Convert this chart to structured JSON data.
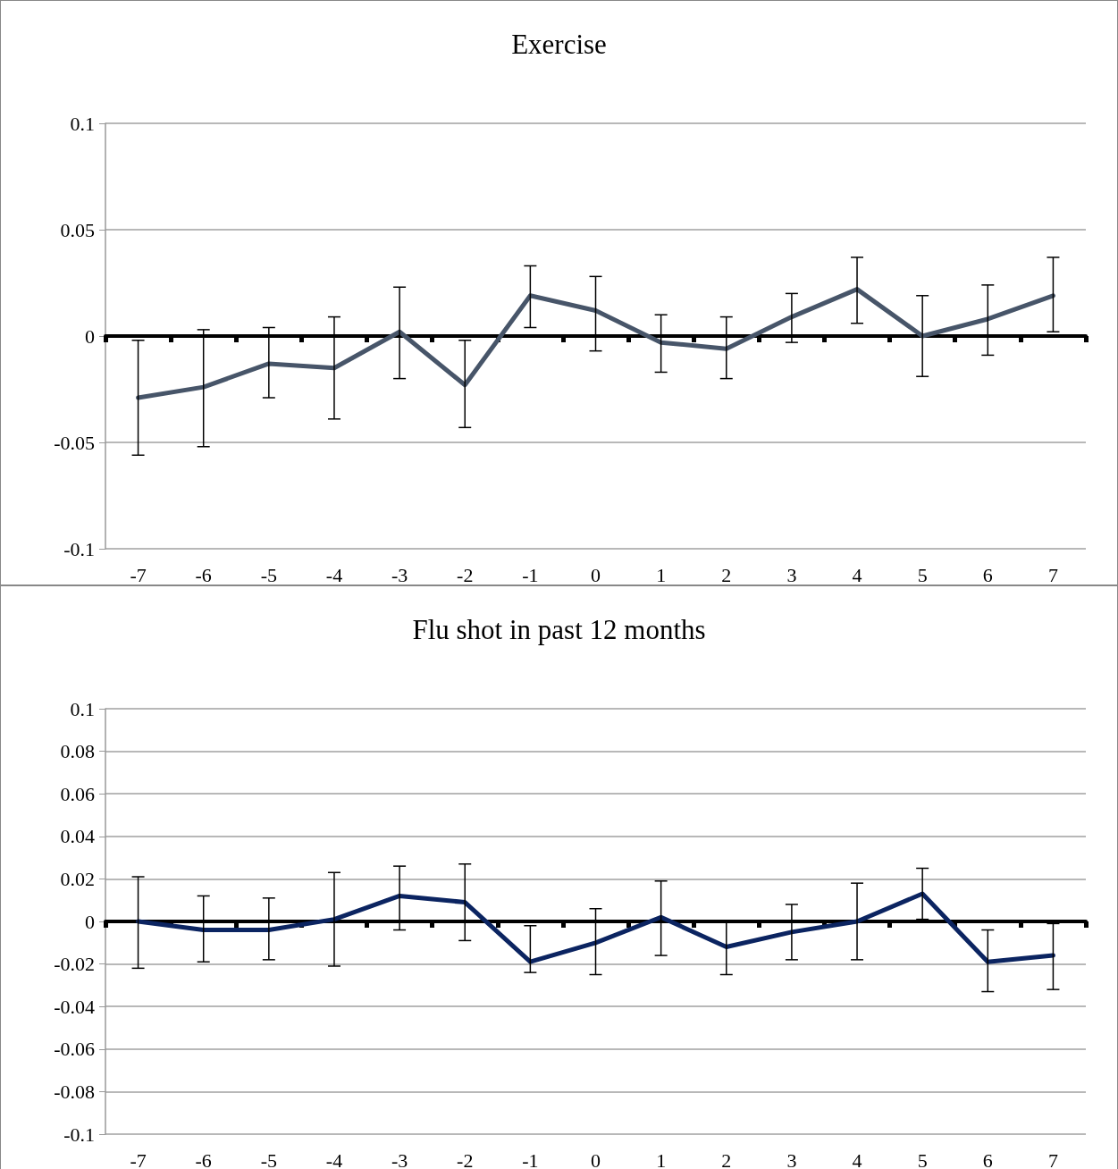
{
  "chart_data": [
    {
      "type": "line",
      "title": "Exercise",
      "categories": [
        "-7",
        "-6",
        "-5",
        "-4",
        "-3",
        "-2",
        "-1",
        "0",
        "1",
        "2",
        "3",
        "4",
        "5",
        "6",
        "7"
      ],
      "series": [
        {
          "color": "#475569",
          "values": [
            -0.029,
            -0.024,
            -0.013,
            -0.015,
            0.002,
            -0.023,
            0.019,
            0.012,
            -0.003,
            -0.006,
            0.009,
            0.022,
            0.0,
            0.008,
            0.019
          ],
          "errors": [
            [
              -0.056,
              -0.002
            ],
            [
              -0.052,
              0.003
            ],
            [
              -0.029,
              0.004
            ],
            [
              -0.039,
              0.009
            ],
            [
              -0.02,
              0.023
            ],
            [
              -0.043,
              -0.002
            ],
            [
              0.004,
              0.033
            ],
            [
              -0.007,
              0.028
            ],
            [
              -0.017,
              0.01
            ],
            [
              -0.02,
              0.009
            ],
            [
              -0.003,
              0.02
            ],
            [
              0.006,
              0.037
            ],
            [
              -0.019,
              0.019
            ],
            [
              -0.009,
              0.024
            ],
            [
              0.002,
              0.037
            ]
          ]
        }
      ],
      "ylim": [
        -0.1,
        0.1
      ],
      "yticks": [
        -0.1,
        -0.05,
        0,
        0.05,
        0.1
      ],
      "grid": "y"
    },
    {
      "type": "line",
      "title": "Flu shot in past 12 months",
      "categories": [
        "-7",
        "-6",
        "-5",
        "-4",
        "-3",
        "-2",
        "-1",
        "0",
        "1",
        "2",
        "3",
        "4",
        "5",
        "6",
        "7"
      ],
      "series": [
        {
          "color": "#0b2461",
          "values": [
            0.0,
            -0.004,
            -0.004,
            0.001,
            0.012,
            0.009,
            -0.019,
            -0.01,
            0.002,
            -0.012,
            -0.005,
            0.0,
            0.013,
            -0.019,
            -0.016
          ],
          "errors": [
            [
              -0.022,
              0.021
            ],
            [
              -0.019,
              0.012
            ],
            [
              -0.018,
              0.011
            ],
            [
              -0.021,
              0.023
            ],
            [
              -0.004,
              0.026
            ],
            [
              -0.009,
              0.027
            ],
            [
              -0.024,
              -0.002
            ],
            [
              -0.025,
              0.006
            ],
            [
              -0.016,
              0.019
            ],
            [
              -0.025,
              0.0
            ],
            [
              -0.018,
              0.008
            ],
            [
              -0.018,
              0.018
            ],
            [
              0.001,
              0.025
            ],
            [
              -0.033,
              -0.004
            ],
            [
              -0.032,
              -0.001
            ]
          ]
        }
      ],
      "ylim": [
        -0.1,
        0.1
      ],
      "yticks": [
        -0.1,
        -0.08,
        -0.06,
        -0.04,
        -0.02,
        0,
        0.02,
        0.04,
        0.06,
        0.08,
        0.1
      ],
      "grid": "y"
    }
  ]
}
